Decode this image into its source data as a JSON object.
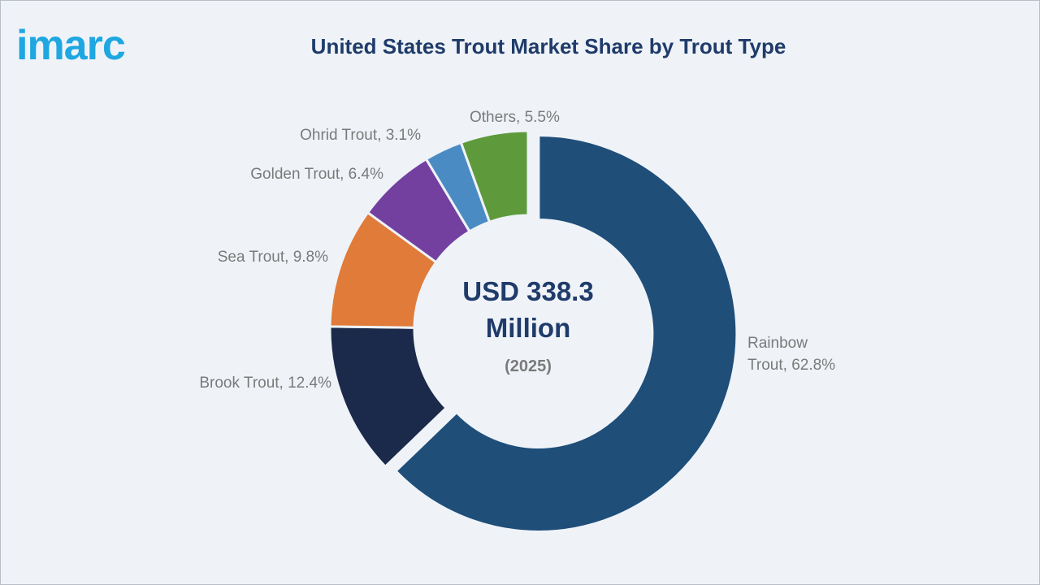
{
  "brand": {
    "logo_text": "imarc",
    "logo_color": "#1ea7e1"
  },
  "chart_data": {
    "type": "pie",
    "title": "United States Trout Market Share by Trout Type",
    "center_value": "USD 338.3",
    "center_value_line2": "Million",
    "center_year": "(2025)",
    "slices": [
      {
        "label": "Rainbow Trout",
        "value": 62.8,
        "display": "62.8%",
        "color": "#1f4e79",
        "label_lines": [
          "Rainbow",
          "Trout, 62.8%"
        ]
      },
      {
        "label": "Brook Trout",
        "value": 12.4,
        "display": "12.4%",
        "color": "#1b2a4a",
        "label_lines": [
          "Brook Trout, 12.4%"
        ]
      },
      {
        "label": "Sea Trout",
        "value": 9.8,
        "display": "9.8%",
        "color": "#e07b39",
        "label_lines": [
          "Sea Trout, 9.8%"
        ]
      },
      {
        "label": "Golden Trout",
        "value": 6.4,
        "display": "6.4%",
        "color": "#7340a0",
        "label_lines": [
          "Golden Trout, 6.4%"
        ]
      },
      {
        "label": "Ohrid Trout",
        "value": 3.1,
        "display": "3.1%",
        "color": "#4b8bc3",
        "label_lines": [
          "Ohrid Trout, 3.1%"
        ]
      },
      {
        "label": "Others",
        "value": 5.5,
        "display": "5.5%",
        "color": "#5e9a3c",
        "label_lines": [
          "Others, 5.5%"
        ]
      }
    ],
    "legend": "none",
    "exploded_slice": "Rainbow Trout"
  }
}
